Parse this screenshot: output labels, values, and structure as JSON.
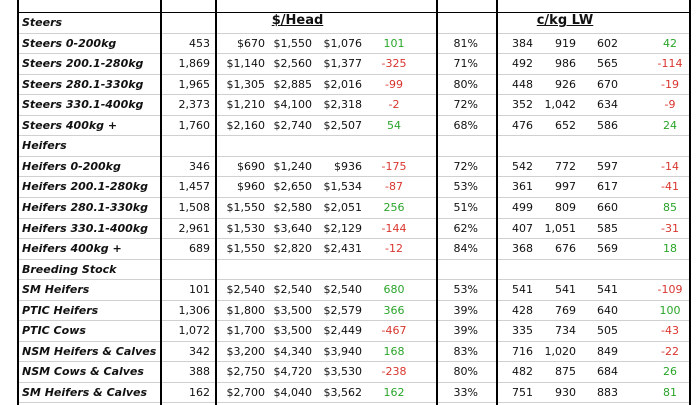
{
  "header": {
    "dollar_head": "$/Head",
    "ckg": "c/kg LW"
  },
  "sections": [
    {
      "title": "Steers",
      "rows": [
        [
          "Steers 0-200kg",
          "453",
          "$670",
          "$1,550",
          "$1,076",
          "101",
          "81%",
          "384",
          "919",
          "602",
          "42"
        ],
        [
          "Steers 200.1-280kg",
          "1,869",
          "$1,140",
          "$2,560",
          "$1,377",
          "-325",
          "71%",
          "492",
          "986",
          "565",
          "-114"
        ],
        [
          "Steers 280.1-330kg",
          "1,965",
          "$1,305",
          "$2,885",
          "$2,016",
          "-99",
          "80%",
          "448",
          "926",
          "670",
          "-19"
        ],
        [
          "Steers 330.1-400kg",
          "2,373",
          "$1,210",
          "$4,100",
          "$2,318",
          "-2",
          "72%",
          "352",
          "1,042",
          "634",
          "-9"
        ],
        [
          "Steers 400kg +",
          "1,760",
          "$2,160",
          "$2,740",
          "$2,507",
          "54",
          "68%",
          "476",
          "652",
          "586",
          "24"
        ]
      ]
    },
    {
      "title": "Heifers",
      "rows": [
        [
          "Heifers 0-200kg",
          "346",
          "$690",
          "$1,240",
          "$936",
          "-175",
          "72%",
          "542",
          "772",
          "597",
          "-14"
        ],
        [
          "Heifers 200.1-280kg",
          "1,457",
          "$960",
          "$2,650",
          "$1,534",
          "-87",
          "53%",
          "361",
          "997",
          "617",
          "-41"
        ],
        [
          "Heifers 280.1-330kg",
          "1,508",
          "$1,550",
          "$2,580",
          "$2,051",
          "256",
          "51%",
          "499",
          "809",
          "660",
          "85"
        ],
        [
          "Heifers 330.1-400kg",
          "2,961",
          "$1,530",
          "$3,640",
          "$2,129",
          "-144",
          "62%",
          "407",
          "1,051",
          "585",
          "-31"
        ],
        [
          "Heifers 400kg +",
          "689",
          "$1,550",
          "$2,820",
          "$2,431",
          "-12",
          "84%",
          "368",
          "676",
          "569",
          "18"
        ]
      ]
    },
    {
      "title": "Breeding Stock",
      "rows": [
        [
          "SM Heifers",
          "101",
          "$2,540",
          "$2,540",
          "$2,540",
          "680",
          "53%",
          "541",
          "541",
          "541",
          "-109"
        ],
        [
          "PTIC Heifers",
          "1,306",
          "$1,800",
          "$3,500",
          "$2,579",
          "366",
          "39%",
          "428",
          "769",
          "640",
          "100"
        ],
        [
          "PTIC Cows",
          "1,072",
          "$1,700",
          "$3,500",
          "$2,449",
          "-467",
          "39%",
          "335",
          "734",
          "505",
          "-43"
        ],
        [
          "NSM Heifers & Calves",
          "342",
          "$3,200",
          "$4,340",
          "$3,940",
          "168",
          "83%",
          "716",
          "1,020",
          "849",
          "-22"
        ],
        [
          "NSM Cows & Calves",
          "388",
          "$2,750",
          "$4,720",
          "$3,530",
          "-238",
          "80%",
          "482",
          "875",
          "684",
          "26"
        ],
        [
          "SM Heifers & Calves",
          "162",
          "$2,700",
          "$4,040",
          "$3,562",
          "162",
          "33%",
          "751",
          "930",
          "883",
          "81"
        ]
      ]
    }
  ]
}
